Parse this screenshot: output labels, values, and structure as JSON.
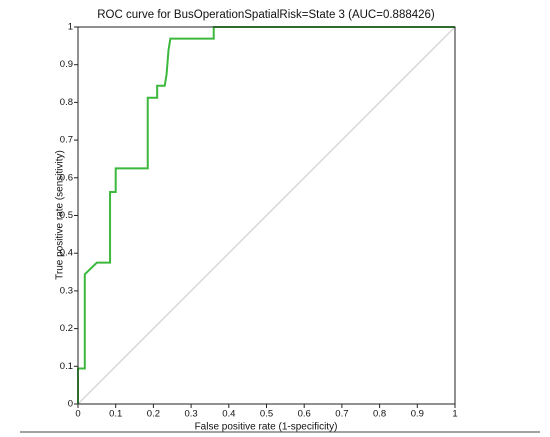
{
  "chart_data": {
    "type": "line",
    "title": "ROC curve for BusOperationSpatialRisk=State 3 (AUC=0.888426)",
    "x_label": "False positive rate (1-specificity)",
    "y_label": "True positive rate (sensitivity)",
    "x": [
      0,
      0,
      0.018,
      0.018,
      0.05,
      0.085,
      0.085,
      0.1,
      0.1,
      0.185,
      0.185,
      0.21,
      0.21,
      0.23,
      0.235,
      0.24,
      0.245,
      0.36,
      0.36,
      1
    ],
    "values": [
      0,
      0.094,
      0.094,
      0.344,
      0.375,
      0.375,
      0.5625,
      0.5625,
      0.625,
      0.625,
      0.8125,
      0.8125,
      0.844,
      0.844,
      0.875,
      0.938,
      0.969,
      0.969,
      1,
      1
    ],
    "color": "#3cb83c",
    "diagonal_color": "#c8c8c8",
    "xlim": [
      0,
      1
    ],
    "ylim": [
      0,
      1
    ],
    "xticks": [
      0,
      0.1,
      0.2,
      0.3,
      0.4,
      0.5,
      0.6,
      0.7,
      0.8,
      0.9,
      1
    ],
    "yticks": [
      0,
      0.1,
      0.2,
      0.3,
      0.4,
      0.5,
      0.6,
      0.7,
      0.8,
      0.9,
      1
    ],
    "grid": false
  }
}
